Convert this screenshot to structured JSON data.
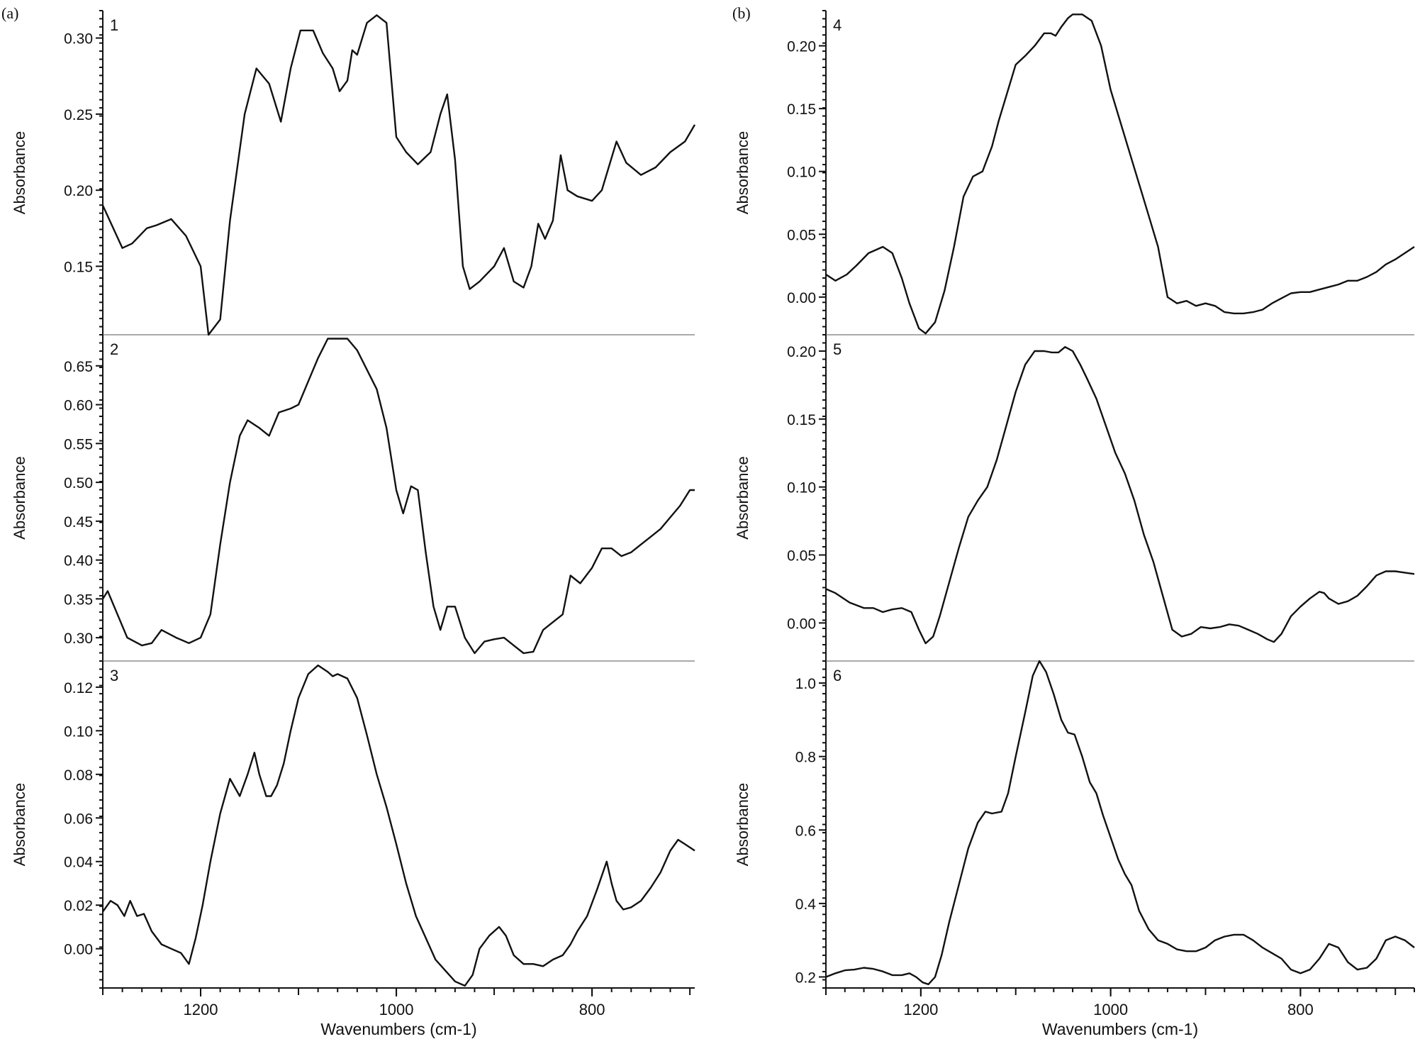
{
  "panel_labels": {
    "a": "(a)",
    "b": "(b)"
  },
  "chart_data": [
    {
      "type": "line",
      "column": "a",
      "label": "1",
      "ylabel": "Absorbance",
      "xlabel": "",
      "xlim": [
        1300,
        695
      ],
      "ylim": [
        0.105,
        0.318
      ],
      "yticks": [
        "0.15",
        "0.20",
        "0.25",
        "0.30"
      ],
      "xticks": [],
      "series": [
        {
          "x": [
            1300,
            1280,
            1270,
            1255,
            1245,
            1230,
            1215,
            1200,
            1192,
            1180,
            1170,
            1155,
            1143,
            1130,
            1118,
            1108,
            1098,
            1085,
            1075,
            1065,
            1058,
            1050,
            1045,
            1040,
            1030,
            1020,
            1010,
            1000,
            990,
            978,
            965,
            955,
            948,
            940,
            932,
            925,
            915,
            900,
            890,
            880,
            870,
            862,
            855,
            848,
            840,
            832,
            825,
            815,
            800,
            790,
            775,
            765,
            750,
            735,
            720,
            705,
            695
          ],
          "y": [
            0.19,
            0.162,
            0.165,
            0.175,
            0.177,
            0.181,
            0.17,
            0.15,
            0.105,
            0.115,
            0.18,
            0.25,
            0.28,
            0.27,
            0.245,
            0.28,
            0.305,
            0.305,
            0.29,
            0.28,
            0.265,
            0.272,
            0.292,
            0.289,
            0.31,
            0.315,
            0.31,
            0.235,
            0.225,
            0.217,
            0.225,
            0.25,
            0.263,
            0.22,
            0.15,
            0.135,
            0.14,
            0.15,
            0.162,
            0.14,
            0.136,
            0.15,
            0.178,
            0.168,
            0.18,
            0.223,
            0.2,
            0.196,
            0.193,
            0.2,
            0.232,
            0.218,
            0.21,
            0.215,
            0.225,
            0.232,
            0.243
          ]
        }
      ]
    },
    {
      "type": "line",
      "column": "a",
      "label": "2",
      "ylabel": "Absorbance",
      "xlabel": "",
      "xlim": [
        1300,
        695
      ],
      "ylim": [
        0.27,
        0.69
      ],
      "yticks": [
        "0.30",
        "0.35",
        "0.40",
        "0.45",
        "0.50",
        "0.55",
        "0.60",
        "0.65"
      ],
      "xticks": [],
      "series": [
        {
          "x": [
            1300,
            1295,
            1285,
            1275,
            1260,
            1250,
            1240,
            1225,
            1212,
            1200,
            1190,
            1180,
            1170,
            1160,
            1152,
            1140,
            1130,
            1120,
            1108,
            1100,
            1090,
            1080,
            1070,
            1060,
            1050,
            1040,
            1030,
            1020,
            1010,
            1000,
            993,
            985,
            978,
            970,
            962,
            955,
            948,
            940,
            930,
            920,
            910,
            900,
            890,
            880,
            870,
            860,
            850,
            840,
            830,
            822,
            812,
            800,
            790,
            780,
            770,
            760,
            750,
            740,
            730,
            720,
            710,
            700,
            695
          ],
          "y": [
            0.35,
            0.36,
            0.33,
            0.3,
            0.29,
            0.293,
            0.31,
            0.3,
            0.293,
            0.3,
            0.33,
            0.42,
            0.5,
            0.56,
            0.58,
            0.57,
            0.56,
            0.59,
            0.595,
            0.6,
            0.63,
            0.66,
            0.685,
            0.685,
            0.685,
            0.67,
            0.645,
            0.62,
            0.57,
            0.49,
            0.46,
            0.495,
            0.49,
            0.41,
            0.34,
            0.31,
            0.34,
            0.34,
            0.3,
            0.28,
            0.295,
            0.298,
            0.3,
            0.29,
            0.28,
            0.282,
            0.31,
            0.32,
            0.33,
            0.38,
            0.37,
            0.39,
            0.415,
            0.415,
            0.405,
            0.41,
            0.42,
            0.43,
            0.44,
            0.455,
            0.47,
            0.49,
            0.49
          ]
        }
      ]
    },
    {
      "type": "line",
      "column": "a",
      "label": "3",
      "ylabel": "Absorbance",
      "xlabel": "Wavenumbers (cm-1)",
      "xlim": [
        1300,
        695
      ],
      "ylim": [
        -0.018,
        0.132
      ],
      "yticks": [
        "0.00",
        "0.02",
        "0.04",
        "0.06",
        "0.08",
        "0.10",
        "0.12"
      ],
      "xticks": [
        "1200",
        "1000",
        "800"
      ],
      "series": [
        {
          "x": [
            1300,
            1292,
            1285,
            1278,
            1272,
            1265,
            1258,
            1250,
            1240,
            1230,
            1220,
            1212,
            1205,
            1198,
            1190,
            1180,
            1170,
            1160,
            1152,
            1145,
            1140,
            1133,
            1128,
            1122,
            1115,
            1108,
            1100,
            1090,
            1080,
            1070,
            1065,
            1060,
            1050,
            1040,
            1030,
            1020,
            1010,
            1000,
            990,
            980,
            970,
            960,
            950,
            940,
            930,
            922,
            915,
            905,
            895,
            888,
            880,
            870,
            860,
            850,
            840,
            830,
            822,
            815,
            805,
            795,
            785,
            780,
            775,
            768,
            760,
            750,
            740,
            730,
            720,
            712,
            705,
            695
          ],
          "y": [
            0.017,
            0.022,
            0.02,
            0.015,
            0.022,
            0.015,
            0.016,
            0.008,
            0.002,
            0.0,
            -0.002,
            -0.007,
            0.005,
            0.02,
            0.04,
            0.062,
            0.078,
            0.07,
            0.08,
            0.09,
            0.08,
            0.07,
            0.07,
            0.075,
            0.085,
            0.1,
            0.115,
            0.126,
            0.13,
            0.127,
            0.125,
            0.126,
            0.124,
            0.115,
            0.098,
            0.08,
            0.065,
            0.048,
            0.03,
            0.015,
            0.005,
            -0.005,
            -0.01,
            -0.015,
            -0.017,
            -0.012,
            0.0,
            0.006,
            0.01,
            0.006,
            -0.003,
            -0.007,
            -0.007,
            -0.008,
            -0.005,
            -0.003,
            0.002,
            0.008,
            0.015,
            0.027,
            0.04,
            0.03,
            0.022,
            0.018,
            0.019,
            0.022,
            0.028,
            0.035,
            0.045,
            0.05,
            0.048,
            0.045
          ]
        }
      ]
    },
    {
      "type": "line",
      "column": "b",
      "label": "4",
      "ylabel": "Absorbance",
      "xlabel": "",
      "xlim": [
        1300,
        680
      ],
      "ylim": [
        -0.03,
        0.228
      ],
      "yticks": [
        "0.00",
        "0.05",
        "0.10",
        "0.15",
        "0.20"
      ],
      "xticks": [],
      "series": [
        {
          "x": [
            1300,
            1290,
            1278,
            1268,
            1255,
            1240,
            1230,
            1220,
            1212,
            1202,
            1195,
            1185,
            1175,
            1165,
            1155,
            1145,
            1135,
            1125,
            1118,
            1108,
            1100,
            1090,
            1080,
            1070,
            1063,
            1058,
            1052,
            1045,
            1040,
            1030,
            1020,
            1010,
            1000,
            990,
            980,
            970,
            960,
            950,
            940,
            930,
            920,
            910,
            900,
            890,
            880,
            870,
            860,
            850,
            840,
            830,
            820,
            810,
            800,
            790,
            780,
            770,
            760,
            750,
            740,
            730,
            720,
            710,
            700,
            690,
            680
          ],
          "y": [
            0.018,
            0.013,
            0.018,
            0.025,
            0.035,
            0.04,
            0.035,
            0.015,
            -0.005,
            -0.025,
            -0.029,
            -0.02,
            0.005,
            0.04,
            0.08,
            0.096,
            0.1,
            0.12,
            0.14,
            0.165,
            0.185,
            0.192,
            0.2,
            0.21,
            0.21,
            0.208,
            0.215,
            0.222,
            0.225,
            0.225,
            0.22,
            0.2,
            0.165,
            0.14,
            0.115,
            0.09,
            0.065,
            0.04,
            0.0,
            -0.005,
            -0.003,
            -0.007,
            -0.005,
            -0.007,
            -0.012,
            -0.013,
            -0.013,
            -0.012,
            -0.01,
            -0.005,
            -0.001,
            0.003,
            0.004,
            0.004,
            0.006,
            0.008,
            0.01,
            0.013,
            0.013,
            0.016,
            0.02,
            0.026,
            0.03,
            0.035,
            0.04
          ]
        }
      ]
    },
    {
      "type": "line",
      "column": "b",
      "label": "5",
      "ylabel": "Absorbance",
      "xlabel": "",
      "xlim": [
        1300,
        680
      ],
      "ylim": [
        -0.028,
        0.212
      ],
      "yticks": [
        "0.00",
        "0.05",
        "0.10",
        "0.15",
        "0.20"
      ],
      "xticks": [],
      "series": [
        {
          "x": [
            1300,
            1290,
            1275,
            1260,
            1250,
            1240,
            1230,
            1220,
            1210,
            1202,
            1195,
            1187,
            1180,
            1170,
            1160,
            1150,
            1140,
            1130,
            1120,
            1110,
            1100,
            1090,
            1080,
            1070,
            1062,
            1055,
            1048,
            1040,
            1032,
            1025,
            1015,
            1005,
            995,
            985,
            975,
            965,
            955,
            945,
            935,
            925,
            915,
            905,
            895,
            885,
            875,
            865,
            855,
            845,
            835,
            828,
            820,
            810,
            800,
            790,
            780,
            775,
            770,
            760,
            750,
            740,
            730,
            720,
            710,
            700,
            690,
            680
          ],
          "y": [
            0.025,
            0.022,
            0.015,
            0.011,
            0.011,
            0.008,
            0.01,
            0.011,
            0.008,
            -0.005,
            -0.015,
            -0.01,
            0.005,
            0.03,
            0.055,
            0.078,
            0.09,
            0.1,
            0.12,
            0.145,
            0.17,
            0.19,
            0.2,
            0.2,
            0.199,
            0.199,
            0.203,
            0.2,
            0.19,
            0.18,
            0.165,
            0.145,
            0.125,
            0.11,
            0.09,
            0.065,
            0.045,
            0.02,
            -0.005,
            -0.01,
            -0.008,
            -0.003,
            -0.004,
            -0.003,
            -0.001,
            -0.002,
            -0.005,
            -0.008,
            -0.012,
            -0.014,
            -0.008,
            0.005,
            0.012,
            0.018,
            0.023,
            0.022,
            0.018,
            0.014,
            0.016,
            0.02,
            0.027,
            0.035,
            0.038,
            0.038,
            0.037,
            0.036
          ]
        }
      ]
    },
    {
      "type": "line",
      "column": "b",
      "label": "6",
      "ylabel": "Absorbance",
      "xlabel": "Wavenumbers (cm-1)",
      "xlim": [
        1300,
        680
      ],
      "ylim": [
        0.17,
        1.06
      ],
      "yticks": [
        "0.2",
        "0.4",
        "0.6",
        "0.8",
        "1.0"
      ],
      "xticks": [
        "1200",
        "1000",
        "800"
      ],
      "series": [
        {
          "x": [
            1300,
            1290,
            1280,
            1270,
            1260,
            1250,
            1240,
            1230,
            1220,
            1212,
            1205,
            1198,
            1192,
            1185,
            1178,
            1170,
            1160,
            1150,
            1140,
            1132,
            1125,
            1115,
            1108,
            1100,
            1090,
            1082,
            1075,
            1068,
            1060,
            1052,
            1045,
            1038,
            1030,
            1022,
            1015,
            1008,
            1000,
            992,
            985,
            978,
            970,
            960,
            950,
            940,
            930,
            920,
            910,
            900,
            890,
            880,
            870,
            860,
            850,
            840,
            830,
            820,
            810,
            800,
            790,
            780,
            770,
            760,
            750,
            740,
            730,
            720,
            710,
            700,
            690,
            680
          ],
          "y": [
            0.2,
            0.21,
            0.218,
            0.22,
            0.225,
            0.222,
            0.215,
            0.205,
            0.205,
            0.21,
            0.2,
            0.185,
            0.18,
            0.2,
            0.26,
            0.35,
            0.45,
            0.55,
            0.62,
            0.65,
            0.645,
            0.65,
            0.7,
            0.8,
            0.92,
            1.02,
            1.06,
            1.03,
            0.97,
            0.9,
            0.865,
            0.86,
            0.8,
            0.73,
            0.7,
            0.64,
            0.58,
            0.52,
            0.48,
            0.45,
            0.38,
            0.33,
            0.3,
            0.29,
            0.275,
            0.27,
            0.27,
            0.28,
            0.3,
            0.31,
            0.315,
            0.315,
            0.3,
            0.28,
            0.265,
            0.25,
            0.22,
            0.21,
            0.22,
            0.25,
            0.29,
            0.28,
            0.24,
            0.22,
            0.225,
            0.25,
            0.3,
            0.31,
            0.3,
            0.28
          ]
        }
      ]
    }
  ]
}
